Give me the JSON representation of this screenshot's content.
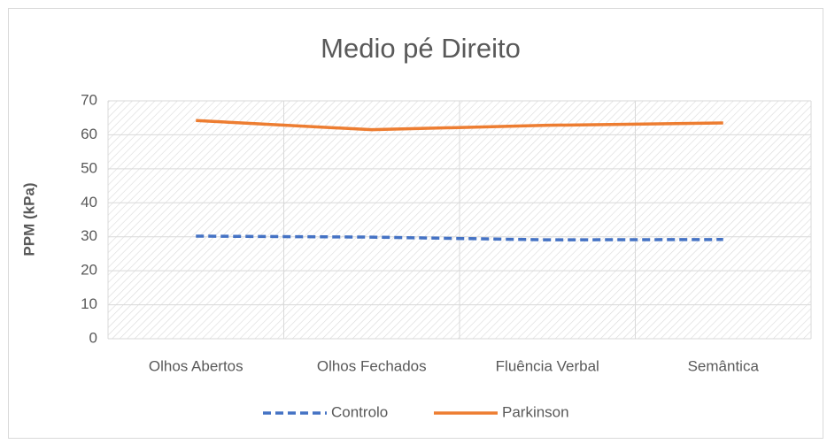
{
  "chart_data": {
    "type": "line",
    "title": "Medio pé Direito",
    "y_label": "PPM (kPa)",
    "categories": [
      "Olhos Abertos",
      "Olhos Fechados",
      "Fluência Verbal",
      "Semântica"
    ],
    "series": [
      {
        "name": "Controlo",
        "color": "#4472c4",
        "dashed": true,
        "values": [
          30.2,
          29.9,
          29.1,
          29.2
        ]
      },
      {
        "name": "Parkinson",
        "color": "#ed7d31",
        "dashed": false,
        "values": [
          64.2,
          61.5,
          62.8,
          63.5
        ]
      }
    ],
    "ylim": [
      0,
      70
    ],
    "yticks": [
      0,
      10,
      20,
      30,
      40,
      50,
      60,
      70
    ],
    "grid": true,
    "legend": "bottom"
  }
}
